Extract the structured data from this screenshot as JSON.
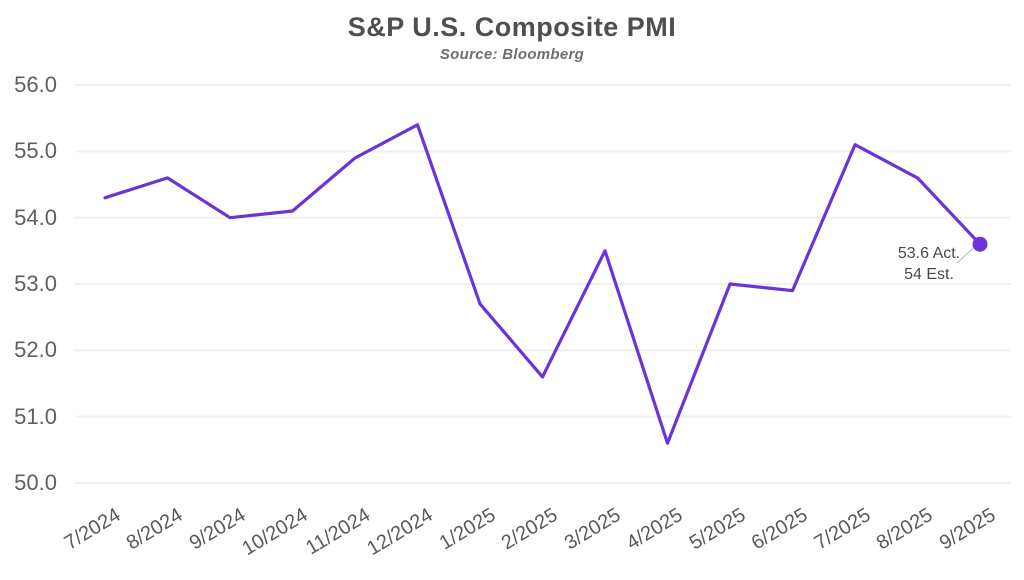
{
  "chart_data": {
    "type": "line",
    "title": "S&P U.S. Composite PMI",
    "subtitle": "Source: Bloomberg",
    "categories": [
      "7/2024",
      "8/2024",
      "9/2024",
      "10/2024",
      "11/2024",
      "12/2024",
      "1/2025",
      "2/2025",
      "3/2025",
      "4/2025",
      "5/2025",
      "6/2025",
      "7/2025",
      "8/2025",
      "9/2025"
    ],
    "values": [
      54.3,
      54.6,
      54.0,
      54.1,
      54.9,
      55.4,
      52.7,
      51.6,
      53.5,
      50.6,
      53.0,
      52.9,
      55.1,
      54.6,
      53.6
    ],
    "ylim": [
      50.0,
      56.0
    ],
    "ytick_step": 1.0,
    "ytick_labels": [
      "56.0",
      "55.0",
      "54.0",
      "53.0",
      "52.0",
      "51.0",
      "50.0"
    ],
    "grid": "horizontal only",
    "legend": "none",
    "last_point_marker": true,
    "annotation": {
      "line1": "53.6 Act.",
      "line2": "54 Est."
    },
    "colors": {
      "line": "#6a35d8",
      "marker": "#6a35d8",
      "grid": "#efefef",
      "title_text": "#4f4f4f",
      "subtitle_text": "#6e6e6e",
      "axis_text": "#5e5e5e",
      "annotation_text": "#4a4a4a",
      "leader_line": "#c2c2c2",
      "background": "#ffffff"
    }
  }
}
